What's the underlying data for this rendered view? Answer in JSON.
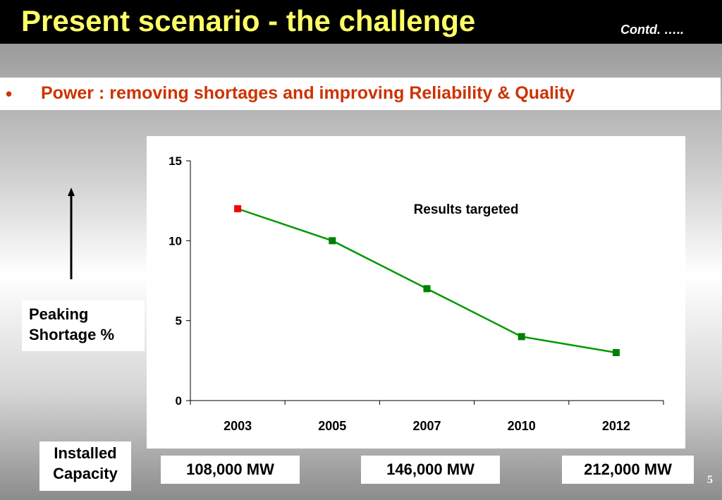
{
  "slide": {
    "title": "Present scenario - the challenge",
    "contd": "Contd. …..",
    "bullet_marker": "•",
    "bullet_text": "Power : removing shortages and improving Reliability & Quality",
    "page_number": "5"
  },
  "y_axis_label": {
    "line1": "Peaking",
    "line2": "Shortage %"
  },
  "x_axis_label": {
    "line1": "Installed",
    "line2": "Capacity"
  },
  "capacities": [
    "108,000 MW",
    "146,000 MW",
    "212,000 MW"
  ],
  "chart_data": {
    "type": "line",
    "categories": [
      "2003",
      "2005",
      "2007",
      "2010",
      "2012"
    ],
    "series": [
      {
        "values": [
          12,
          10,
          7,
          4,
          3
        ]
      }
    ],
    "point_colors": [
      "#ff0000",
      "#008000",
      "#008000",
      "#008000",
      "#008000"
    ],
    "line_color": "#009900",
    "annotation": "Results targeted",
    "ylim": [
      0,
      15
    ],
    "yticks": [
      0,
      5,
      10,
      15
    ],
    "grid": false,
    "legend": "none"
  }
}
